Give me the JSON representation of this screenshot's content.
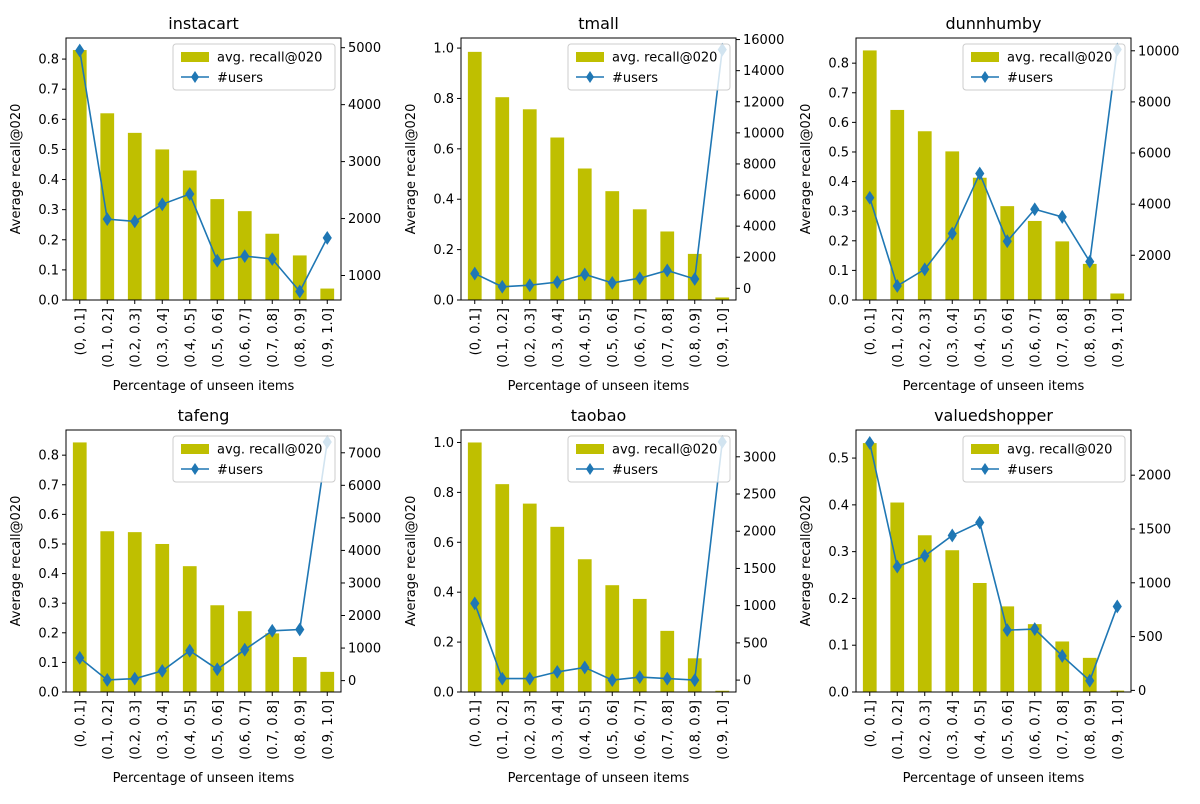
{
  "figure": {
    "xlabel": "Percentage of unseen items",
    "ylabel": "Average recall@020",
    "legend_bar": "avg. recall@020",
    "legend_line": "#users",
    "categories": [
      "(0, 0.1]",
      "(0.1, 0.2]",
      "(0.2, 0.3]",
      "(0.3, 0.4]",
      "(0.4, 0.5]",
      "(0.5, 0.6]",
      "(0.6, 0.7]",
      "(0.7, 0.8]",
      "(0.8, 0.9]",
      "(0.9, 1.0]"
    ],
    "colors": {
      "bar": "#bfbf00",
      "line": "#1f77b4"
    }
  },
  "chart_data": [
    {
      "type": "bar",
      "title": "instacart",
      "xlabel": "Percentage of unseen items",
      "ylabel": "Average recall@020",
      "categories": [
        "(0, 0.1]",
        "(0.1, 0.2]",
        "(0.2, 0.3]",
        "(0.3, 0.4]",
        "(0.4, 0.5]",
        "(0.5, 0.6]",
        "(0.6, 0.7]",
        "(0.7, 0.8]",
        "(0.8, 0.9]",
        "(0.9, 1.0]"
      ],
      "series": [
        {
          "name": "avg. recall@020",
          "type": "bar",
          "axis": "left",
          "values": [
            0.83,
            0.62,
            0.555,
            0.5,
            0.43,
            0.335,
            0.295,
            0.22,
            0.148,
            0.038
          ]
        },
        {
          "name": "#users",
          "type": "line",
          "axis": "right",
          "marker": "diamond",
          "values": [
            4950,
            1990,
            1950,
            2250,
            2430,
            1260,
            1340,
            1290,
            720,
            1660
          ]
        }
      ],
      "ylim": [
        0,
        0.87
      ],
      "yticks": [
        0.0,
        0.1,
        0.2,
        0.3,
        0.4,
        0.5,
        0.6,
        0.7,
        0.8
      ],
      "y2lim": [
        570,
        5170
      ],
      "y2ticks": [
        1000,
        2000,
        3000,
        4000,
        5000
      ],
      "legend": "upper right"
    },
    {
      "type": "bar",
      "title": "tmall",
      "xlabel": "Percentage of unseen items",
      "ylabel": "Average recall@020",
      "categories": [
        "(0, 0.1]",
        "(0.1, 0.2]",
        "(0.2, 0.3]",
        "(0.3, 0.4]",
        "(0.4, 0.5]",
        "(0.5, 0.6]",
        "(0.6, 0.7]",
        "(0.7, 0.8]",
        "(0.8, 0.9]",
        "(0.9, 1.0]"
      ],
      "series": [
        {
          "name": "avg. recall@020",
          "type": "bar",
          "axis": "left",
          "values": [
            0.985,
            0.805,
            0.757,
            0.645,
            0.522,
            0.432,
            0.36,
            0.272,
            0.183,
            0.01
          ]
        },
        {
          "name": "#users",
          "type": "line",
          "axis": "right",
          "marker": "diamond",
          "values": [
            950,
            100,
            200,
            400,
            900,
            350,
            650,
            1150,
            600,
            15350
          ]
        }
      ],
      "ylim": [
        0,
        1.04
      ],
      "yticks": [
        0.0,
        0.2,
        0.4,
        0.6,
        0.8,
        1.0
      ],
      "y2lim": [
        -750,
        16100
      ],
      "y2ticks": [
        0,
        2000,
        4000,
        6000,
        8000,
        10000,
        12000,
        14000,
        16000
      ],
      "legend": "upper right"
    },
    {
      "type": "bar",
      "title": "dunnhumby",
      "xlabel": "Percentage of unseen items",
      "ylabel": "Average recall@020",
      "categories": [
        "(0, 0.1]",
        "(0.1, 0.2]",
        "(0.2, 0.3]",
        "(0.3, 0.4]",
        "(0.4, 0.5]",
        "(0.5, 0.6]",
        "(0.6, 0.7]",
        "(0.7, 0.8]",
        "(0.8, 0.9]",
        "(0.9, 1.0]"
      ],
      "series": [
        {
          "name": "avg. recall@020",
          "type": "bar",
          "axis": "left",
          "values": [
            0.843,
            0.642,
            0.57,
            0.502,
            0.413,
            0.317,
            0.267,
            0.198,
            0.122,
            0.022
          ]
        },
        {
          "name": "#users",
          "type": "line",
          "axis": "right",
          "marker": "diamond",
          "values": [
            4250,
            800,
            1450,
            2850,
            5200,
            2550,
            3800,
            3500,
            1750,
            10050
          ]
        }
      ],
      "ylim": [
        0,
        0.885
      ],
      "yticks": [
        0.0,
        0.1,
        0.2,
        0.3,
        0.4,
        0.5,
        0.6,
        0.7,
        0.8
      ],
      "y2lim": [
        250,
        10500
      ],
      "y2ticks": [
        2000,
        4000,
        6000,
        8000,
        10000
      ],
      "legend": "upper right"
    },
    {
      "type": "bar",
      "title": "tafeng",
      "xlabel": "Percentage of unseen items",
      "ylabel": "Average recall@020",
      "categories": [
        "(0, 0.1]",
        "(0.1, 0.2]",
        "(0.2, 0.3]",
        "(0.3, 0.4]",
        "(0.4, 0.5]",
        "(0.5, 0.6]",
        "(0.6, 0.7]",
        "(0.7, 0.8]",
        "(0.8, 0.9]",
        "(0.9, 1.0]"
      ],
      "series": [
        {
          "name": "avg. recall@020",
          "type": "bar",
          "axis": "left",
          "values": [
            0.843,
            0.543,
            0.54,
            0.5,
            0.425,
            0.293,
            0.273,
            0.198,
            0.118,
            0.068
          ]
        },
        {
          "name": "#users",
          "type": "line",
          "axis": "right",
          "marker": "diamond",
          "values": [
            700,
            20,
            60,
            300,
            920,
            350,
            950,
            1530,
            1570,
            7330
          ]
        }
      ],
      "ylim": [
        0,
        0.885
      ],
      "yticks": [
        0.0,
        0.1,
        0.2,
        0.3,
        0.4,
        0.5,
        0.6,
        0.7,
        0.8
      ],
      "y2lim": [
        -350,
        7700
      ],
      "y2ticks": [
        0,
        1000,
        2000,
        3000,
        4000,
        5000,
        6000,
        7000
      ],
      "legend": "upper right"
    },
    {
      "type": "bar",
      "title": "taobao",
      "xlabel": "Percentage of unseen items",
      "ylabel": "Average recall@020",
      "categories": [
        "(0, 0.1]",
        "(0.1, 0.2]",
        "(0.2, 0.3]",
        "(0.3, 0.4]",
        "(0.4, 0.5]",
        "(0.5, 0.6]",
        "(0.6, 0.7]",
        "(0.7, 0.8]",
        "(0.8, 0.9]",
        "(0.9, 1.0]"
      ],
      "series": [
        {
          "name": "avg. recall@020",
          "type": "bar",
          "axis": "left",
          "values": [
            1.0,
            0.833,
            0.755,
            0.662,
            0.532,
            0.428,
            0.373,
            0.245,
            0.135,
            0.005
          ]
        },
        {
          "name": "#users",
          "type": "line",
          "axis": "right",
          "marker": "diamond",
          "values": [
            1030,
            20,
            20,
            110,
            170,
            0,
            40,
            20,
            0,
            3200
          ]
        }
      ],
      "ylim": [
        0,
        1.05
      ],
      "yticks": [
        0.0,
        0.2,
        0.4,
        0.6,
        0.8,
        1.0
      ],
      "y2lim": [
        -160,
        3360
      ],
      "y2ticks": [
        0,
        500,
        1000,
        1500,
        2000,
        2500,
        3000
      ],
      "legend": "upper right"
    },
    {
      "type": "bar",
      "title": "valuedshopper",
      "xlabel": "Percentage of unseen items",
      "ylabel": "Average recall@020",
      "categories": [
        "(0, 0.1]",
        "(0.1, 0.2]",
        "(0.2, 0.3]",
        "(0.3, 0.4]",
        "(0.4, 0.5]",
        "(0.5, 0.6]",
        "(0.6, 0.7]",
        "(0.7, 0.8]",
        "(0.8, 0.9]",
        "(0.9, 1.0]"
      ],
      "series": [
        {
          "name": "avg. recall@020",
          "type": "bar",
          "axis": "left",
          "values": [
            0.532,
            0.405,
            0.335,
            0.303,
            0.233,
            0.183,
            0.145,
            0.108,
            0.073,
            0.003
          ]
        },
        {
          "name": "#users",
          "type": "line",
          "axis": "right",
          "marker": "diamond",
          "values": [
            2300,
            1150,
            1250,
            1440,
            1560,
            560,
            570,
            320,
            90,
            780
          ]
        }
      ],
      "ylim": [
        0,
        0.56
      ],
      "yticks": [
        0.0,
        0.1,
        0.2,
        0.3,
        0.4,
        0.5
      ],
      "y2lim": [
        -15,
        2420
      ],
      "y2ticks": [
        0,
        500,
        1000,
        1500,
        2000
      ],
      "legend": "upper right"
    }
  ]
}
